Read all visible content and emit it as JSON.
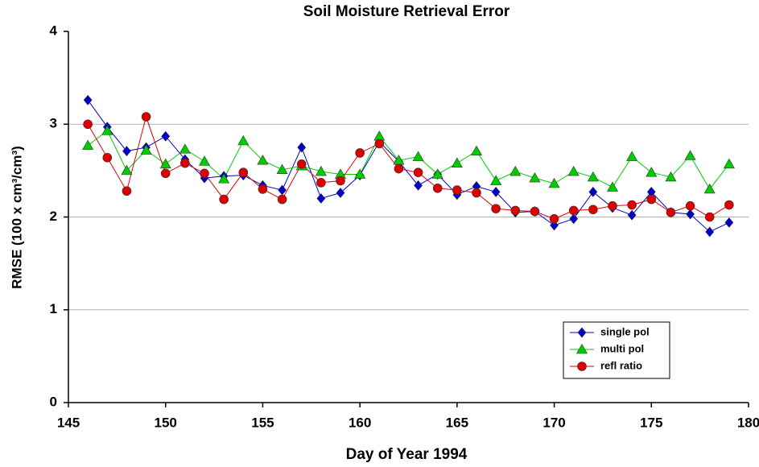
{
  "chart_data": {
    "type": "line",
    "title": "Soil Moisture Retrieval Error",
    "xlabel": "Day of Year 1994",
    "ylabel": "RMSE  (100 x cm³/cm³)",
    "x": [
      146,
      147,
      148,
      149,
      150,
      151,
      152,
      153,
      154,
      155,
      156,
      157,
      158,
      159,
      160,
      161,
      162,
      163,
      164,
      165,
      166,
      167,
      168,
      169,
      170,
      171,
      172,
      173,
      174,
      175,
      176,
      177,
      178,
      179
    ],
    "series": [
      {
        "name": "single pol",
        "color": "#0000cc",
        "marker": "diamond",
        "values": [
          3.26,
          2.97,
          2.71,
          2.75,
          2.87,
          2.62,
          2.42,
          2.44,
          2.45,
          2.34,
          2.29,
          2.75,
          2.2,
          2.26,
          2.45,
          2.81,
          2.6,
          2.34,
          2.46,
          2.24,
          2.33,
          2.27,
          2.05,
          2.06,
          1.91,
          1.98,
          2.27,
          2.1,
          2.02,
          2.27,
          2.05,
          2.03,
          1.84,
          1.94
        ]
      },
      {
        "name": "multi pol",
        "color": "#00cc00",
        "marker": "triangle",
        "values": [
          2.77,
          2.93,
          2.5,
          2.72,
          2.57,
          2.73,
          2.6,
          2.41,
          2.82,
          2.61,
          2.51,
          2.55,
          2.49,
          2.46,
          2.46,
          2.87,
          2.61,
          2.65,
          2.46,
          2.58,
          2.71,
          2.39,
          2.49,
          2.42,
          2.36,
          2.49,
          2.43,
          2.32,
          2.65,
          2.48,
          2.43,
          2.66,
          2.3,
          2.57
        ]
      },
      {
        "name": "refl ratio",
        "color": "#dd0000",
        "marker": "circle",
        "values": [
          3.0,
          2.64,
          2.28,
          3.08,
          2.47,
          2.58,
          2.47,
          2.19,
          2.48,
          2.3,
          2.19,
          2.57,
          2.37,
          2.39,
          2.69,
          2.79,
          2.52,
          2.48,
          2.31,
          2.29,
          2.26,
          2.09,
          2.07,
          2.06,
          1.98,
          2.07,
          2.08,
          2.12,
          2.13,
          2.19,
          2.05,
          2.12,
          2.0,
          2.13
        ]
      }
    ],
    "xlim": [
      145,
      180
    ],
    "xticks": [
      145,
      150,
      155,
      160,
      165,
      170,
      175,
      180
    ],
    "ylim": [
      0,
      4
    ],
    "yticks": [
      0,
      1,
      2,
      3,
      4
    ],
    "grid": true,
    "legend": "lower right"
  }
}
